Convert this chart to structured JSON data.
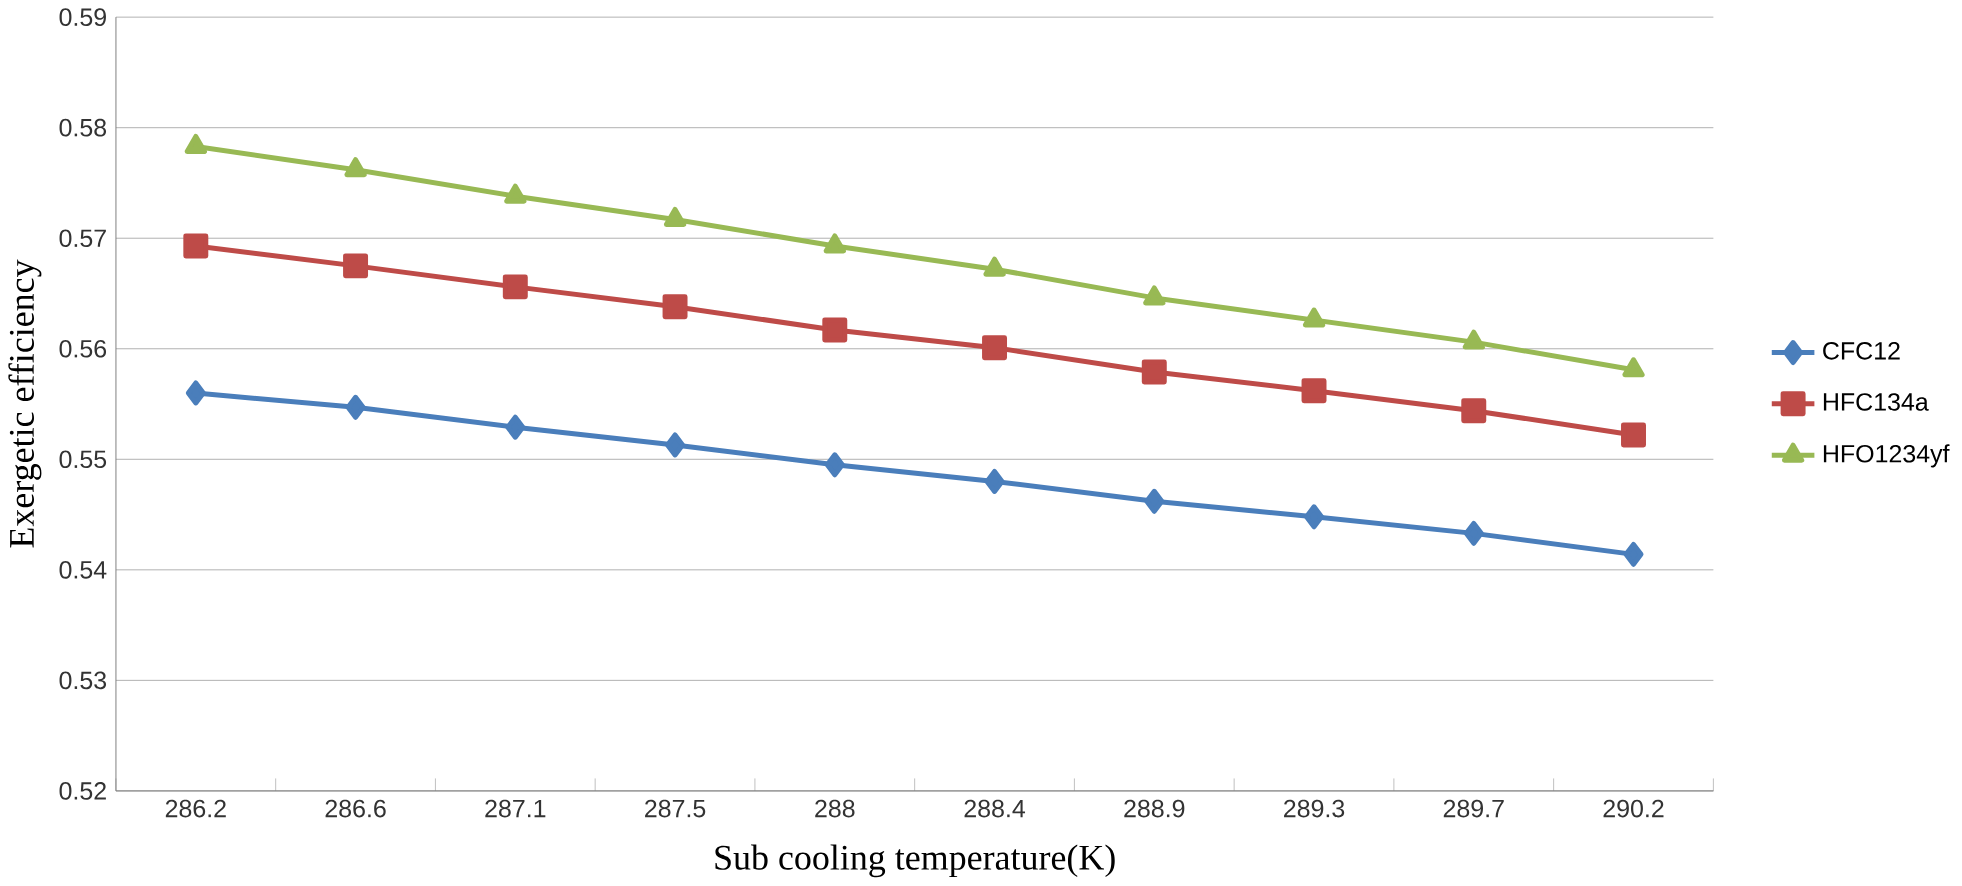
{
  "chart_data": {
    "type": "line",
    "xlabel": "Sub cooling temperature(K)",
    "ylabel": "Exergetic efficiency",
    "categories": [
      "286.2",
      "286.6",
      "287.1",
      "287.5",
      "288",
      "288.4",
      "288.9",
      "289.3",
      "289.7",
      "290.2"
    ],
    "series": [
      {
        "name": "CFC12",
        "color": "#4a7ebb",
        "marker": "diamond",
        "values": [
          0.556,
          0.5547,
          0.5529,
          0.5513,
          0.5495,
          0.548,
          0.5462,
          0.5448,
          0.5433,
          0.5414
        ]
      },
      {
        "name": "HFC134a",
        "color": "#be4b48",
        "marker": "square",
        "values": [
          0.5693,
          0.5675,
          0.5656,
          0.5638,
          0.5617,
          0.5601,
          0.5579,
          0.5562,
          0.5544,
          0.5522
        ]
      },
      {
        "name": "HFO1234yf",
        "color": "#98b954",
        "marker": "triangle",
        "values": [
          0.5783,
          0.5762,
          0.5738,
          0.5717,
          0.5693,
          0.5672,
          0.5646,
          0.5626,
          0.5606,
          0.5581
        ]
      }
    ],
    "ylim": [
      0.52,
      0.59
    ],
    "yticks": [
      0.52,
      0.53,
      0.54,
      0.55,
      0.56,
      0.57,
      0.58,
      0.59
    ],
    "grid": "y",
    "legend": "right",
    "line_style": "solid"
  }
}
